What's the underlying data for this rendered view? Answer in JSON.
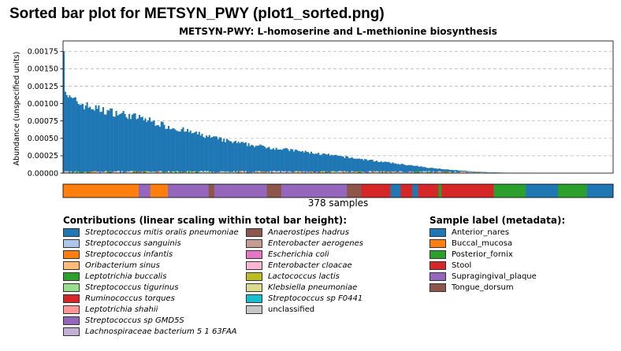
{
  "page": {
    "title": "Sorted bar plot for METSYN_PWY (plot1_sorted.png)"
  },
  "chart_data": {
    "type": "bar",
    "title": "METSYN-PWY: L-homoserine and L-methionine biosynthesis",
    "ylabel": "Abundance (unspecified units)",
    "xlabel": "378 samples",
    "n_samples": 378,
    "ylim": [
      0,
      0.0019
    ],
    "yticks": [
      0.0,
      0.00025,
      0.0005,
      0.00075,
      0.001,
      0.00125,
      0.0015,
      0.00175
    ],
    "ytick_labels": [
      "0.00000",
      "0.00025",
      "0.00050",
      "0.00075",
      "0.00100",
      "0.00125",
      "0.00150",
      "0.00175"
    ],
    "grid": "horizontal dashed",
    "sorted": "descending by total abundance",
    "profile_points": [
      [
        0,
        0.00188
      ],
      [
        1,
        0.00122
      ],
      [
        3,
        0.00108
      ],
      [
        8,
        0.00103
      ],
      [
        15,
        0.00097
      ],
      [
        25,
        0.00091
      ],
      [
        40,
        0.00085
      ],
      [
        55,
        0.00078
      ],
      [
        70,
        0.00068
      ],
      [
        85,
        0.0006
      ],
      [
        100,
        0.00052
      ],
      [
        115,
        0.00045
      ],
      [
        130,
        0.0004
      ],
      [
        145,
        0.00036
      ],
      [
        160,
        0.00032
      ],
      [
        175,
        0.00028
      ],
      [
        190,
        0.00024
      ],
      [
        205,
        0.0002
      ],
      [
        220,
        0.00016
      ],
      [
        235,
        0.00012
      ],
      [
        250,
        8e-05
      ],
      [
        265,
        5e-05
      ],
      [
        280,
        2.5e-05
      ],
      [
        295,
        1e-05
      ],
      [
        310,
        3e-06
      ],
      [
        325,
        1e-06
      ],
      [
        377,
        0.0
      ]
    ],
    "metadata_strip_segments": [
      {
        "label": "Buccal_mucosa",
        "from": 0,
        "to": 52
      },
      {
        "label": "Supragingival_plaque",
        "from": 52,
        "to": 60
      },
      {
        "label": "Buccal_mucosa",
        "from": 60,
        "to": 72
      },
      {
        "label": "Supragingival_plaque",
        "from": 72,
        "to": 100
      },
      {
        "label": "Tongue_dorsum",
        "from": 100,
        "to": 104
      },
      {
        "label": "Supragingival_plaque",
        "from": 104,
        "to": 140
      },
      {
        "label": "Tongue_dorsum",
        "from": 140,
        "to": 150
      },
      {
        "label": "Supragingival_plaque",
        "from": 150,
        "to": 195
      },
      {
        "label": "Tongue_dorsum",
        "from": 195,
        "to": 205
      },
      {
        "label": "Stool",
        "from": 205,
        "to": 225
      },
      {
        "label": "Anterior_nares",
        "from": 225,
        "to": 232
      },
      {
        "label": "Stool",
        "from": 232,
        "to": 240
      },
      {
        "label": "Anterior_nares",
        "from": 240,
        "to": 244
      },
      {
        "label": "Stool",
        "from": 244,
        "to": 258
      },
      {
        "label": "Posterior_fornix",
        "from": 258,
        "to": 260
      },
      {
        "label": "Stool",
        "from": 260,
        "to": 296
      },
      {
        "label": "Posterior_fornix",
        "from": 296,
        "to": 318
      },
      {
        "label": "Anterior_nares",
        "from": 318,
        "to": 340
      },
      {
        "label": "Posterior_fornix",
        "from": 340,
        "to": 360
      },
      {
        "label": "Anterior_nares",
        "from": 360,
        "to": 378
      }
    ],
    "contributions_legend": {
      "title": "Contributions (linear scaling within total bar height):",
      "items": [
        {
          "label": "Streptococcus mitis oralis pneumoniae",
          "color": "#1f77b4"
        },
        {
          "label": "Streptococcus sanguinis",
          "color": "#aec7e8"
        },
        {
          "label": "Streptococcus infantis",
          "color": "#ff7f0e"
        },
        {
          "label": "Oribacterium sinus",
          "color": "#ffbb78"
        },
        {
          "label": "Leptotrichia buccalis",
          "color": "#2ca02c"
        },
        {
          "label": "Streptococcus tigurinus",
          "color": "#98df8a"
        },
        {
          "label": "Ruminococcus torques",
          "color": "#d62728"
        },
        {
          "label": "Leptotrichia shahii",
          "color": "#ff9896"
        },
        {
          "label": "Streptococcus sp GMD5S",
          "color": "#9467bd"
        },
        {
          "label": "Lachnospiraceae bacterium 5 1 63FAA",
          "color": "#c5b0d5"
        },
        {
          "label": "Anaerostipes hadrus",
          "color": "#8c564b"
        },
        {
          "label": "Enterobacter aerogenes",
          "color": "#c49c94"
        },
        {
          "label": "Escherichia coli",
          "color": "#e377c2"
        },
        {
          "label": "Enterobacter cloacae",
          "color": "#f7b6d2"
        },
        {
          "label": "Lactococcus lactis",
          "color": "#bcbd22"
        },
        {
          "label": "Klebsiella pneumoniae",
          "color": "#dbdb8d"
        },
        {
          "label": "Streptococcus sp F0441",
          "color": "#17becf"
        },
        {
          "label": "unclassified",
          "color": "#c7c7c7"
        }
      ]
    },
    "sample_legend": {
      "title": "Sample label (metadata):",
      "items": [
        {
          "label": "Anterior_nares",
          "color": "#1f77b4"
        },
        {
          "label": "Buccal_mucosa",
          "color": "#ff7f0e"
        },
        {
          "label": "Posterior_fornix",
          "color": "#2ca02c"
        },
        {
          "label": "Stool",
          "color": "#d62728"
        },
        {
          "label": "Supragingival_plaque",
          "color": "#9467bd"
        },
        {
          "label": "Tongue_dorsum",
          "color": "#8c564b"
        }
      ]
    }
  }
}
